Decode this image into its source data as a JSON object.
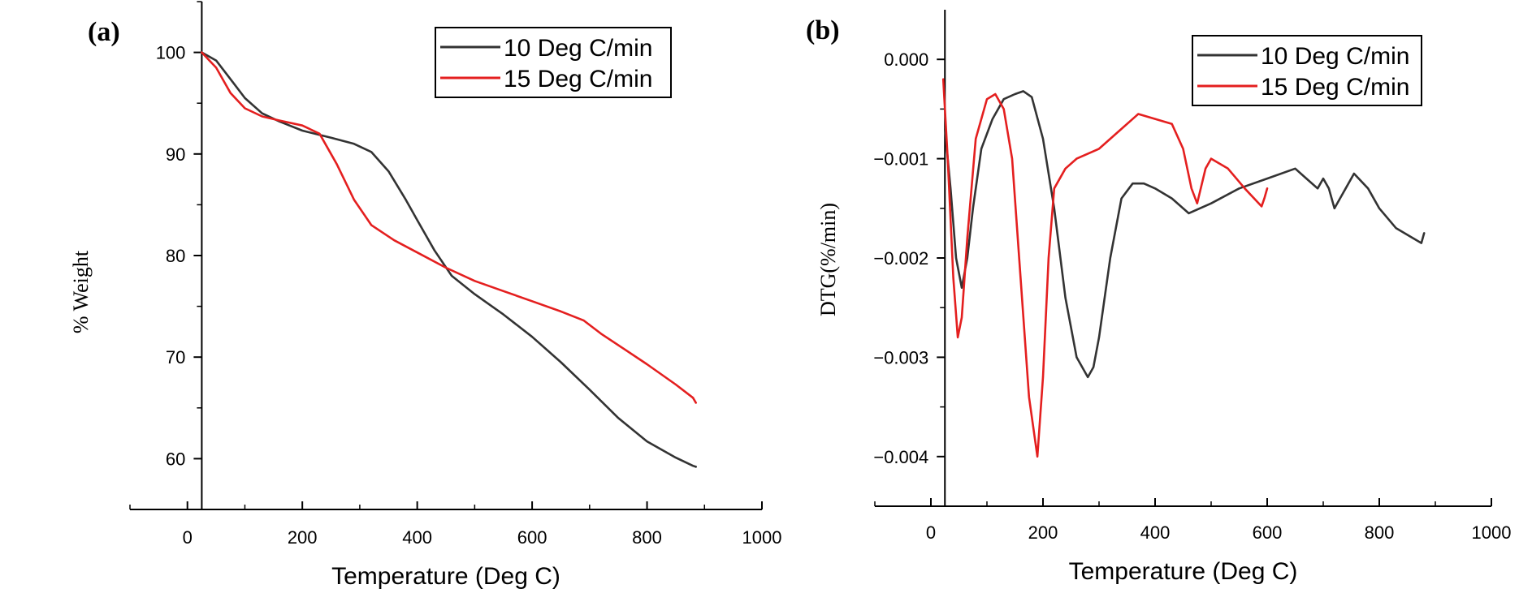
{
  "chart_data": [
    {
      "panel": "(a)",
      "type": "line",
      "title": "",
      "xlabel": "Temperature (Deg C)",
      "ylabel": "% Weight",
      "xlim": [
        -100,
        1000
      ],
      "ylim": [
        55,
        105
      ],
      "xticks": [
        0,
        200,
        400,
        600,
        800,
        1000
      ],
      "yticks": [
        60,
        70,
        80,
        90,
        100
      ],
      "legend_position": "top-right",
      "grid": false,
      "series": [
        {
          "name": "10 Deg C/min",
          "color": "#333333",
          "x": [
            25,
            50,
            80,
            100,
            130,
            160,
            200,
            250,
            290,
            320,
            350,
            380,
            400,
            430,
            460,
            500,
            550,
            600,
            650,
            700,
            750,
            800,
            850,
            880,
            885
          ],
          "y": [
            100,
            99.2,
            97,
            95.5,
            94,
            93.2,
            92.3,
            91.6,
            91,
            90.2,
            88.3,
            85.5,
            83.5,
            80.5,
            78,
            76.2,
            74.2,
            72,
            69.5,
            66.8,
            64,
            61.7,
            60.1,
            59.3,
            59.2
          ]
        },
        {
          "name": "15 Deg C/min",
          "color": "#e41f1f",
          "x": [
            25,
            50,
            75,
            100,
            130,
            160,
            200,
            230,
            260,
            290,
            320,
            360,
            400,
            450,
            500,
            550,
            600,
            650,
            690,
            720,
            760,
            800,
            850,
            880,
            885
          ],
          "y": [
            100,
            98.5,
            96,
            94.5,
            93.7,
            93.3,
            92.8,
            92,
            89,
            85.5,
            83,
            81.5,
            80.3,
            78.8,
            77.5,
            76.5,
            75.5,
            74.5,
            73.6,
            72.3,
            70.8,
            69.3,
            67.3,
            66,
            65.5
          ]
        }
      ]
    },
    {
      "panel": "(b)",
      "type": "line",
      "title": "",
      "xlabel": "Temperature (Deg C)",
      "ylabel": "DTG(%/min)",
      "xlim": [
        -100,
        1000
      ],
      "ylim": [
        -0.0045,
        0.0005
      ],
      "xticks": [
        0,
        200,
        400,
        600,
        800,
        1000
      ],
      "yticks": [
        0.0,
        -0.001,
        -0.002,
        -0.003,
        -0.004
      ],
      "ytick_labels": [
        "0.000",
        "−0.001",
        "−0.002",
        "−0.003",
        "−0.004"
      ],
      "legend_position": "top-right",
      "grid": false,
      "series": [
        {
          "name": "10 Deg C/min",
          "color": "#333333",
          "x": [
            25,
            35,
            45,
            55,
            65,
            75,
            90,
            110,
            130,
            150,
            165,
            180,
            200,
            220,
            240,
            260,
            280,
            290,
            300,
            320,
            340,
            360,
            380,
            400,
            430,
            460,
            500,
            550,
            600,
            650,
            670,
            690,
            700,
            710,
            720,
            740,
            755,
            780,
            800,
            830,
            860,
            875,
            880
          ],
          "y": [
            -0.0007,
            -0.0013,
            -0.002,
            -0.0023,
            -0.002,
            -0.0015,
            -0.0009,
            -0.0006,
            -0.0004,
            -0.00035,
            -0.00032,
            -0.00038,
            -0.0008,
            -0.0015,
            -0.0024,
            -0.003,
            -0.0032,
            -0.0031,
            -0.0028,
            -0.002,
            -0.0014,
            -0.00125,
            -0.00125,
            -0.0013,
            -0.0014,
            -0.00155,
            -0.00145,
            -0.0013,
            -0.0012,
            -0.0011,
            -0.0012,
            -0.0013,
            -0.0012,
            -0.0013,
            -0.0015,
            -0.0013,
            -0.00115,
            -0.0013,
            -0.0015,
            -0.0017,
            -0.0018,
            -0.00185,
            -0.00175
          ]
        },
        {
          "name": "15 Deg C/min",
          "color": "#e41f1f",
          "x": [
            22,
            30,
            40,
            48,
            55,
            65,
            80,
            100,
            115,
            130,
            145,
            160,
            175,
            190,
            200,
            210,
            220,
            240,
            260,
            300,
            340,
            370,
            400,
            430,
            450,
            465,
            475,
            490,
            500,
            530,
            560,
            590,
            595,
            600
          ],
          "y": [
            -0.0002,
            -0.001,
            -0.0022,
            -0.0028,
            -0.0026,
            -0.0018,
            -0.0008,
            -0.0004,
            -0.00035,
            -0.0005,
            -0.001,
            -0.0022,
            -0.0034,
            -0.004,
            -0.0032,
            -0.002,
            -0.0013,
            -0.0011,
            -0.001,
            -0.0009,
            -0.0007,
            -0.00055,
            -0.0006,
            -0.00065,
            -0.0009,
            -0.0013,
            -0.00145,
            -0.0011,
            -0.001,
            -0.0011,
            -0.0013,
            -0.00148,
            -0.0014,
            -0.0013
          ]
        }
      ]
    }
  ]
}
